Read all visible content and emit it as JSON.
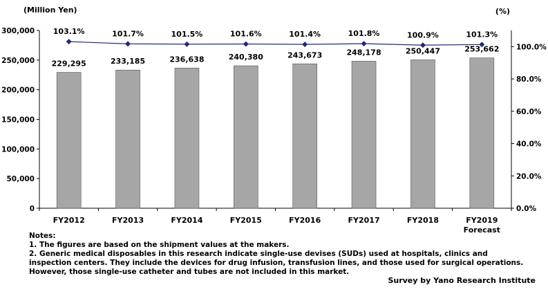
{
  "chart_data": {
    "type": "bar",
    "categories": [
      "FY2012",
      "FY2013",
      "FY2014",
      "FY2015",
      "FY2016",
      "FY2017",
      "FY2018",
      "FY2019"
    ],
    "category_sublabels": [
      "",
      "",
      "",
      "",
      "",
      "",
      "",
      "Forecast"
    ],
    "series": [
      {
        "type": "bar",
        "axis": "left",
        "values": [
          229295,
          233185,
          236638,
          240380,
          243673,
          248178,
          250447,
          253662
        ],
        "data_labels": [
          "229,295",
          "233,185",
          "236,638",
          "240,380",
          "243,673",
          "248,178",
          "250,447",
          "253,662"
        ],
        "color": "#a6a6a6"
      },
      {
        "type": "line",
        "axis": "right",
        "values": [
          103.1,
          101.7,
          101.5,
          101.6,
          101.4,
          101.8,
          100.9,
          101.3
        ],
        "data_labels": [
          "103.1%",
          "101.7%",
          "101.5%",
          "101.6%",
          "101.4%",
          "101.8%",
          "100.9%",
          "101.3%"
        ],
        "color": "#1f2a7a"
      }
    ],
    "y_left": {
      "label": "(Million Yen)",
      "ylim": [
        0,
        300000
      ],
      "ticks": [
        0,
        50000,
        100000,
        150000,
        200000,
        250000,
        300000
      ],
      "tick_labels": [
        "0",
        "50,000",
        "100,000",
        "150,000",
        "200,000",
        "250,000",
        "300,000"
      ]
    },
    "y_right": {
      "label": "(%)",
      "ylim": [
        0,
        110
      ],
      "ticks": [
        0,
        20,
        40,
        60,
        80,
        100
      ],
      "tick_labels": [
        "0.0%",
        "20.0%",
        "40.0%",
        "60.0%",
        "80.0%",
        "100.0%"
      ]
    },
    "grid": false,
    "legend": "none"
  },
  "notes": {
    "heading": "Notes:",
    "lines": [
      "1. The figures are based on the shipment values at the makers.",
      "2. Generic medical disposables in this research indicate single-use devises (SUDs) used at hospitals, clinics and",
      "inspection centers. They include the devices for drug infusion, transfusion lines, and those used for surgical operations.",
      "However, those single-use catheter and tubes are not included in this market."
    ]
  },
  "credit": "Survey by Yano Research Institute"
}
